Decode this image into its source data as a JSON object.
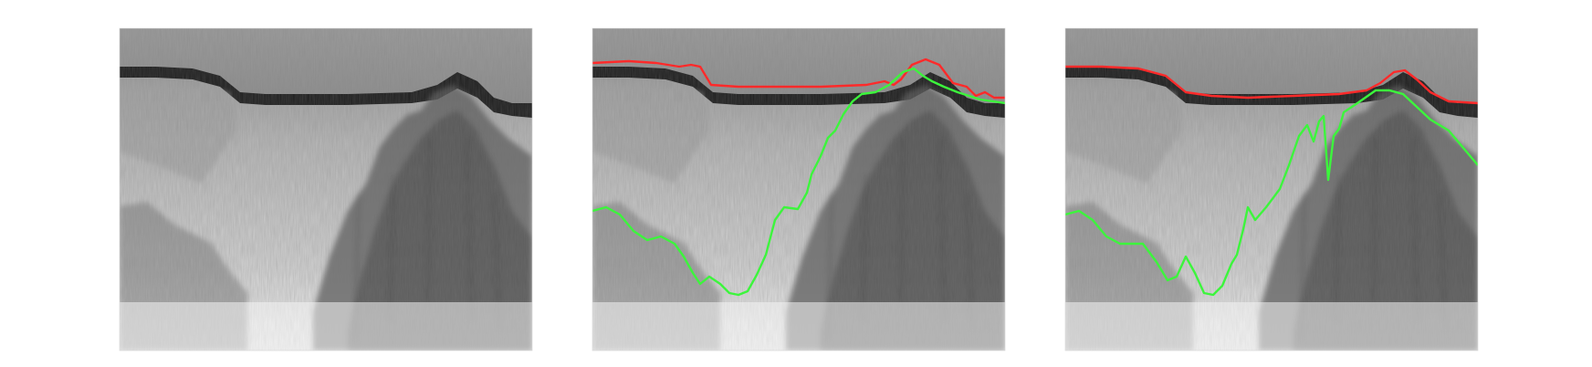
{
  "figure": {
    "panel_count": 3,
    "panels": [
      {
        "name": "radargram-raw",
        "traces": []
      },
      {
        "name": "radargram-method-a",
        "traces": [
          {
            "name": "surface-trace",
            "color": "#ff2a2a"
          },
          {
            "name": "bed-trace",
            "color": "#3cf53c"
          }
        ]
      },
      {
        "name": "radargram-method-b",
        "traces": [
          {
            "name": "surface-trace",
            "color": "#ff2a2a"
          },
          {
            "name": "bed-trace",
            "color": "#3cf53c"
          }
        ]
      }
    ],
    "colors": {
      "background": "#ffffff",
      "sky_band": "#9a9a9a",
      "surface_band": "#1a1a1a",
      "ice_dark": "#3a3a3a",
      "ice_light": "#f2f2f2"
    }
  }
}
